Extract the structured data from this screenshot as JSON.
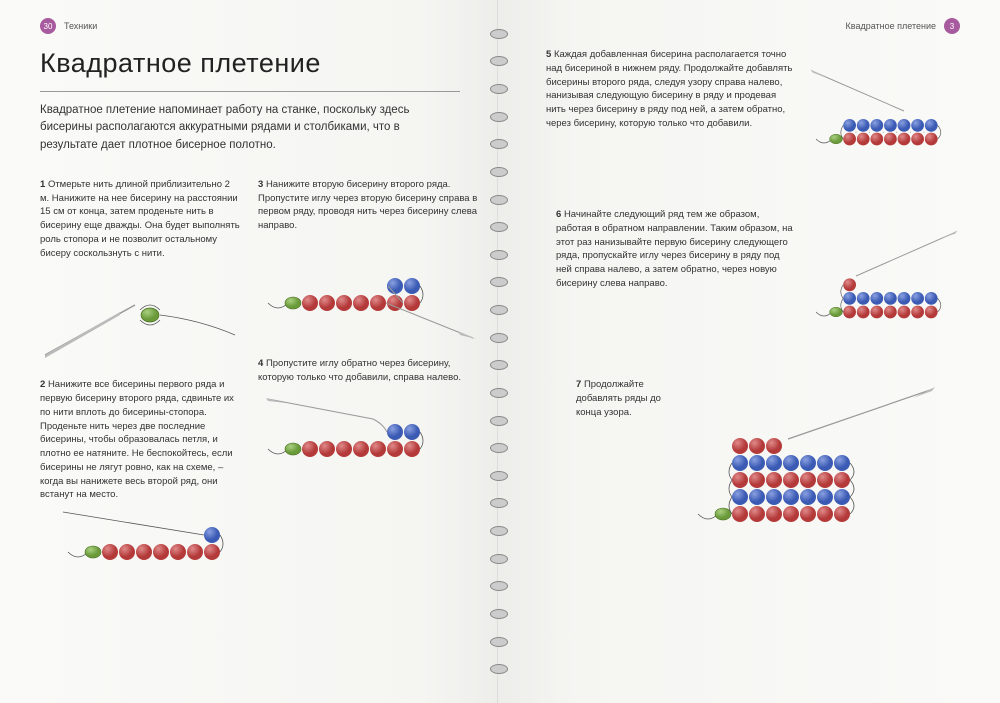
{
  "colors": {
    "red_bead": "#b43a3a",
    "red_bead_hl": "#e08a8a",
    "blue_bead": "#3a5ab4",
    "blue_bead_hl": "#8aa0e0",
    "green_bead": "#6a9a3a",
    "green_bead_hl": "#aad080",
    "needle": "#999",
    "thread": "#555",
    "badge": "#a85a9e"
  },
  "left": {
    "page_num": "30",
    "section": "Техники",
    "title": "Квадратное плетение",
    "intro": "Квадратное плетение напоминает работу на станке, поскольку здесь бисерины располагаются аккуратными рядами и столбиками, что в результате дает плотное бисерное полотно.",
    "step1_num": "1",
    "step1": "Отмерьте нить длиной приблизительно 2 м. Нанижите на нее бисерину на расстоянии 15 см от конца, затем проденьте нить в бисерину еще дважды. Она будет выполнять роль стопора и не позволит остальному бисеру соскользнуть с нити.",
    "step2_num": "2",
    "step2": "Нанижите все бисерины первого ряда и первую бисерину второго ряда, сдвиньте их по нити вплоть до бисерины-стопора. Проденьте нить через две последние бисерины, чтобы образовалась петля, и плотно ее натяните. Не беспокойтесь, если бисерины не лягут ровно, как на схеме, – когда вы нанижете весь второй ряд, они встанут на место.",
    "step3_num": "3",
    "step3": "Нанижите вторую бисерину второго ряда. Пропустите иглу через вторую бисерину справа в первом ряду, проводя нить через бисерину слева направо.",
    "step4_num": "4",
    "step4": "Пропустите иглу обратно через бисерину, которую только что добавили, справа налево."
  },
  "right": {
    "header": "Квадратное плетение",
    "page_num": "3",
    "step5_num": "5",
    "step5": "Каждая добавленная бисерина располагается точно над бисериной в нижнем ряду. Продолжайте добавлять бисерины второго ряда, следуя узору справа налево, нанизывая следующую бисерину в ряду и продевая нить через бисерину в ряду под ней, а затем обратно, через бисерину, которую только что добавили.",
    "step6_num": "6",
    "step6": "Начинайте следующий ряд тем же образом, работая в обратном направлении. Таким образом, на этот раз нанизывайте первую бисерину следующего ряда, пропускайте иглу через бисерину в ряду под ней справа налево, а затем обратно, через новую бисерину слева направо.",
    "step7_num": "7",
    "step7": "Продолжайте добавлять ряды до конца узора."
  }
}
